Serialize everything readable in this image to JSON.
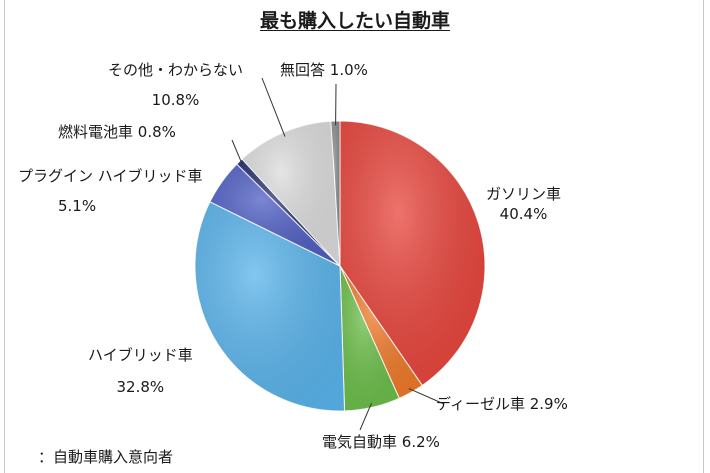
{
  "chart_data": {
    "type": "pie",
    "title": "最も購入したい自動車",
    "slices": [
      {
        "name": "ガソリン車",
        "value": 40.4,
        "value_label": "40.4%",
        "color": "#e8453c"
      },
      {
        "name": "ディーゼル車",
        "value": 2.9,
        "value_label": "2.9%",
        "color": "#f07a2a"
      },
      {
        "name": "電気自動車",
        "value": 6.2,
        "value_label": "6.2%",
        "color": "#6cbf4a"
      },
      {
        "name": "ハイブリッド車",
        "value": 32.8,
        "value_label": "32.8%",
        "color": "#5ab4ec"
      },
      {
        "name": "プラグイン ハイブリッド車",
        "value": 5.1,
        "value_label": "5.1%",
        "color": "#4f5fc4"
      },
      {
        "name": "燃料電池車",
        "value": 0.8,
        "value_label": "0.8%",
        "color": "#2a3272"
      },
      {
        "name": "その他・わからない",
        "value": 10.8,
        "value_label": "10.8%",
        "color": "#dcdcdc"
      },
      {
        "name": "無回答",
        "value": 1.0,
        "value_label": "1.0%",
        "color": "#8a8a8a"
      }
    ]
  },
  "footnote": "：自動車購入意向者"
}
